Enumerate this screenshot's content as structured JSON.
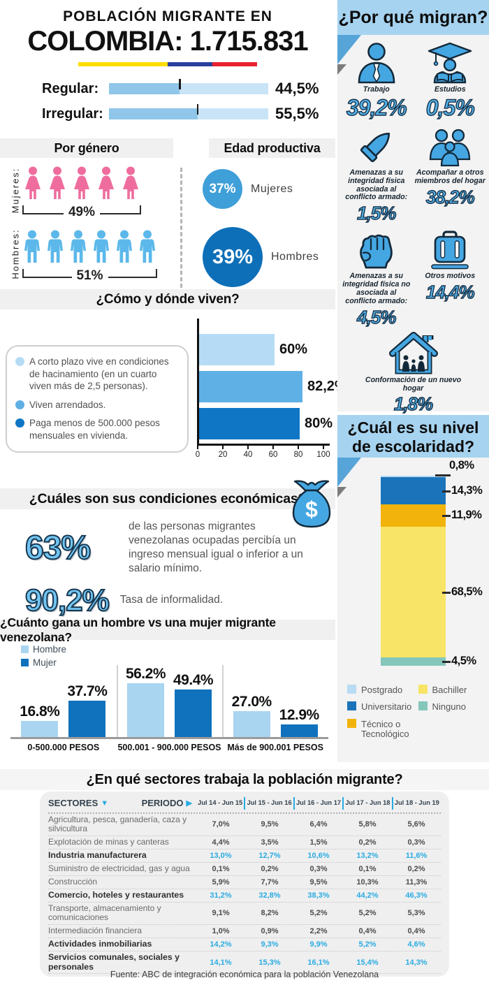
{
  "colors": {
    "accent_blue": "#29abe2",
    "band_blue": "#a6d3f0",
    "panel_gray": "#f3f3f3",
    "band_gray": "#f0f0f0",
    "icon_blue": "#45a7e2",
    "icon_outline": "#13293a",
    "bar_fill": "#8fc6e9",
    "bar_track": "#c9e4f6",
    "number_blue": "#53b3e9"
  },
  "header": {
    "title_line1": "POBLACIÓN MIGRANTE EN",
    "title_line2": "COLOMBIA: 1.715.831",
    "flag": [
      {
        "name": "yellow",
        "color": "#ffdd00",
        "width": 50
      },
      {
        "name": "blue",
        "color": "#2a3f9e",
        "width": 25
      },
      {
        "name": "red",
        "color": "#e8212e",
        "width": 25
      }
    ]
  },
  "status": {
    "rows": [
      {
        "label": "Regular:",
        "pct": 44.5,
        "display": "44,5%"
      },
      {
        "label": "Irregular:",
        "pct": 55.5,
        "display": "55,5%"
      }
    ]
  },
  "gender": {
    "title": "Por género",
    "rows": [
      {
        "label": "Mujeres:",
        "type": "female",
        "count": 5,
        "display": "49%",
        "color": "#ef6d9e"
      },
      {
        "label": "Hombres:",
        "type": "male",
        "count": 6,
        "display": "51%",
        "color": "#5cb8ea"
      }
    ]
  },
  "productive_age": {
    "title": "Edad productiva",
    "items": [
      {
        "display": "37%",
        "label": "Mujeres",
        "color": "#3f9fd8",
        "size": 57
      },
      {
        "display": "39%",
        "label": "Hombres",
        "color": "#0d6fb8",
        "size": 86
      }
    ]
  },
  "why_migrate": {
    "title": "¿Por qué migran?",
    "items": [
      {
        "icon": "worker",
        "label": "Trabajo",
        "value": "39,2%"
      },
      {
        "icon": "graduate",
        "label": "Estudios",
        "value": "0,5%"
      },
      {
        "icon": "bullet",
        "label": "Amenazas a su integridad física asociada al conflicto armado:",
        "value": "1,5%"
      },
      {
        "icon": "family-group",
        "label": "Acompañar a otros miembros del hogar",
        "value": "38,2%"
      },
      {
        "icon": "fist",
        "label": "Amenazas a su integridad física no asociada al conflicto armado:",
        "value": "4,5%"
      },
      {
        "icon": "suitcase",
        "label": "Otros motivos",
        "value": "14,4%"
      },
      {
        "icon": "house-family",
        "label": "Conformación de un nuevo hogar",
        "value": "1,8%"
      }
    ]
  },
  "living": {
    "title": "¿Cómo y dónde viven?",
    "legend": [
      {
        "color": "#b5dcf4",
        "text": "A corto plazo vive en condiciones de hacinamiento (en un cuarto viven más de 2,5 personas)."
      },
      {
        "color": "#5fb0e4",
        "text": "Viven arrendados."
      },
      {
        "color": "#0e76c4",
        "text": "Paga menos de 500.000 pesos mensuales en vivienda."
      }
    ],
    "bars": [
      {
        "value": 60,
        "display": "60%",
        "color": "#b5dcf4"
      },
      {
        "value": 82.2,
        "display": "82,2%",
        "color": "#5fb0e4"
      },
      {
        "value": 80,
        "display": "80%",
        "color": "#0e76c4"
      }
    ],
    "x_ticks": [
      "0",
      "20",
      "40",
      "60",
      "80",
      "100"
    ]
  },
  "economic": {
    "title": "¿Cuáles son sus condiciones económicas?",
    "stats": [
      {
        "value": "63%",
        "text": "de las personas migrantes venezolanas ocupadas percibía un ingreso mensual igual o inferior a un salario mínimo."
      },
      {
        "value": "90,2%",
        "text": "Tasa de informalidad."
      }
    ]
  },
  "income_gap": {
    "title": "¿Cuánto gana un hombre vs una mujer migrante venezolana?",
    "legend": [
      {
        "label": "Hombre",
        "color": "#a9d5f0"
      },
      {
        "label": "Mujer",
        "color": "#1071bd"
      }
    ],
    "categories": [
      "0-500.000 PESOS",
      "500.001 - 900.000 PESOS",
      "Más de 900.001 PESOS"
    ],
    "series": [
      {
        "name": "Hombre",
        "color": "#a9d5f0",
        "values": [
          16.8,
          56.2,
          27.0
        ],
        "labels": [
          "16.8%",
          "56.2%",
          "27.0%"
        ]
      },
      {
        "name": "Mujer",
        "color": "#1071bd",
        "values": [
          37.7,
          49.4,
          12.9
        ],
        "labels": [
          "37.7%",
          "49.4%",
          "12.9%"
        ]
      }
    ]
  },
  "education": {
    "title": "¿Cuál es su nivel de escolaridad?",
    "segments": [
      {
        "label": "Postgrado",
        "value": 0.8,
        "display": "0,8%",
        "color": "#b8dcf3"
      },
      {
        "label": "Universitario",
        "value": 14.3,
        "display": "14,3%",
        "color": "#1b74ba"
      },
      {
        "label": "Técnico o Tecnológico",
        "value": 11.9,
        "display": "11,9%",
        "color": "#f2b30c"
      },
      {
        "label": "Bachiller",
        "value": 68.5,
        "display": "68,5%",
        "color": "#f8e466"
      },
      {
        "label": "Ninguno",
        "value": 4.5,
        "display": "4,5%",
        "color": "#85c6bb"
      }
    ],
    "legend_columns": [
      [
        "Postgrado",
        "Universitario",
        "Técnico o Tecnológico"
      ],
      [
        "Bachiller",
        "Ninguno"
      ]
    ]
  },
  "sectors": {
    "title": "¿En qué sectores trabaja la población migrante?",
    "col_sectores": "SECTORES",
    "col_periodo": "PERIODO",
    "sort_icon": "▼",
    "arrow_icon": "▶",
    "periods": [
      "Jul 14 - Jun 15",
      "Jul 15 - Jun 16",
      "Jul 16 - Jun 17",
      "Jul 17 - Jun 18",
      "Jul 18 - Jun 19"
    ],
    "rows": [
      {
        "name": "Agricultura, pesca, ganadería, caza y silvicultura",
        "values": [
          "7,0%",
          "9,5%",
          "6,4%",
          "5,8%",
          "5,6%"
        ],
        "highlight": false
      },
      {
        "name": "Explotación de minas y canteras",
        "values": [
          "4,4%",
          "3,5%",
          "1,5%",
          "0,2%",
          "0,3%"
        ],
        "highlight": false
      },
      {
        "name": "Industria manufacturera",
        "values": [
          "13,0%",
          "12,7%",
          "10,6%",
          "13,2%",
          "11,6%"
        ],
        "highlight": true
      },
      {
        "name": "Suministro de electricidad, gas y agua",
        "values": [
          "0,1%",
          "0,2%",
          "0,3%",
          "0,1%",
          "0,2%"
        ],
        "highlight": false
      },
      {
        "name": "Construcción",
        "values": [
          "5,9%",
          "7,7%",
          "9,5%",
          "10,3%",
          "11,3%"
        ],
        "highlight": false
      },
      {
        "name": "Comercio, hoteles y restaurantes",
        "values": [
          "31,2%",
          "32,8%",
          "38,3%",
          "44,2%",
          "46,3%"
        ],
        "highlight": true
      },
      {
        "name": "Transporte, almacenamiento y comunicaciones",
        "values": [
          "9,1%",
          "8,2%",
          "5,2%",
          "5,2%",
          "5,3%"
        ],
        "highlight": false
      },
      {
        "name": "Intermediación financiera",
        "values": [
          "1,0%",
          "0,9%",
          "2,2%",
          "0,4%",
          "0,4%"
        ],
        "highlight": false
      },
      {
        "name": "Actividades inmobiliarias",
        "values": [
          "14,2%",
          "9,3%",
          "9,9%",
          "5,2%",
          "4,6%"
        ],
        "highlight": true
      },
      {
        "name": "Servicios comunales, sociales y personales",
        "values": [
          "14,1%",
          "15,3%",
          "16,1%",
          "15,4%",
          "14,3%"
        ],
        "highlight": true
      }
    ]
  },
  "footer": {
    "source": "Fuente: ABC de integración económica para la población Venezolana"
  },
  "chart_data": [
    {
      "type": "bar",
      "title": "Población migrante en Colombia: 1.715.831 — estatus migratorio",
      "categories": [
        "Regular",
        "Irregular"
      ],
      "values": [
        44.5,
        55.5
      ],
      "unit": "%"
    },
    {
      "type": "bar",
      "title": "Por género",
      "categories": [
        "Mujeres",
        "Hombres"
      ],
      "values": [
        49,
        51
      ],
      "unit": "%"
    },
    {
      "type": "bar",
      "title": "Edad productiva",
      "categories": [
        "Mujeres",
        "Hombres"
      ],
      "values": [
        37,
        39
      ],
      "unit": "%"
    },
    {
      "type": "bar",
      "title": "¿Por qué migran?",
      "categories": [
        "Trabajo",
        "Estudios",
        "Amenazas a su integridad física asociada al conflicto armado",
        "Acompañar a otros miembros del hogar",
        "Amenazas a su integridad física no asociada al conflicto armado",
        "Otros motivos",
        "Conformación de un nuevo hogar"
      ],
      "values": [
        39.2,
        0.5,
        1.5,
        38.2,
        4.5,
        14.4,
        1.8
      ],
      "unit": "%"
    },
    {
      "type": "bar",
      "orientation": "horizontal",
      "title": "¿Cómo y dónde viven?",
      "categories": [
        "A corto plazo vive en condiciones de hacinamiento (en un cuarto viven más de 2,5 personas)",
        "Viven arrendados",
        "Paga menos de 500.000 pesos mensuales en vivienda"
      ],
      "values": [
        60,
        82.2,
        80
      ],
      "xlim": [
        0,
        100
      ],
      "x_ticks": [
        0,
        20,
        40,
        60,
        80,
        100
      ],
      "unit": "%"
    },
    {
      "type": "bar",
      "title": "¿Cuáles son sus condiciones económicas?",
      "categories": [
        "Ingreso mensual igual o inferior a un salario mínimo",
        "Tasa de informalidad"
      ],
      "values": [
        63,
        90.2
      ],
      "unit": "%"
    },
    {
      "type": "bar",
      "title": "¿Cuánto gana un hombre vs una mujer migrante venezolana?",
      "categories": [
        "0-500.000 PESOS",
        "500.001 - 900.000 PESOS",
        "Más de 900.001 PESOS"
      ],
      "series": [
        {
          "name": "Hombre",
          "values": [
            16.8,
            56.2,
            27.0
          ]
        },
        {
          "name": "Mujer",
          "values": [
            37.7,
            49.4,
            12.9
          ]
        }
      ],
      "unit": "%",
      "legend_position": "top-left"
    },
    {
      "type": "bar",
      "subtype": "stacked",
      "title": "¿Cuál es su nivel de escolaridad?",
      "categories": [
        "Postgrado",
        "Universitario",
        "Técnico o Tecnológico",
        "Bachiller",
        "Ninguno"
      ],
      "values": [
        0.8,
        14.3,
        11.9,
        68.5,
        4.5
      ],
      "unit": "%"
    },
    {
      "type": "table",
      "title": "¿En qué sectores trabaja la población migrante?",
      "columns": [
        "SECTORES",
        "Jul 14 - Jun 15",
        "Jul 15 - Jun 16",
        "Jul 16 - Jun 17",
        "Jul 17 - Jun 18",
        "Jul 18 - Jun 19"
      ],
      "rows": [
        [
          "Agricultura, pesca, ganadería, caza y silvicultura",
          "7,0%",
          "9,5%",
          "6,4%",
          "5,8%",
          "5,6%"
        ],
        [
          "Explotación de minas y canteras",
          "4,4%",
          "3,5%",
          "1,5%",
          "0,2%",
          "0,3%"
        ],
        [
          "Industria manufacturera",
          "13,0%",
          "12,7%",
          "10,6%",
          "13,2%",
          "11,6%"
        ],
        [
          "Suministro de electricidad, gas y agua",
          "0,1%",
          "0,2%",
          "0,3%",
          "0,1%",
          "0,2%"
        ],
        [
          "Construcción",
          "5,9%",
          "7,7%",
          "9,5%",
          "10,3%",
          "11,3%"
        ],
        [
          "Comercio, hoteles y restaurantes",
          "31,2%",
          "32,8%",
          "38,3%",
          "44,2%",
          "46,3%"
        ],
        [
          "Transporte, almacenamiento y comunicaciones",
          "9,1%",
          "8,2%",
          "5,2%",
          "5,2%",
          "5,3%"
        ],
        [
          "Intermediación financiera",
          "1,0%",
          "0,9%",
          "2,2%",
          "0,4%",
          "0,4%"
        ],
        [
          "Actividades inmobiliarias",
          "14,2%",
          "9,3%",
          "9,9%",
          "5,2%",
          "4,6%"
        ],
        [
          "Servicios comunales, sociales y personales",
          "14,1%",
          "15,3%",
          "16,1%",
          "15,4%",
          "14,3%"
        ]
      ]
    }
  ]
}
